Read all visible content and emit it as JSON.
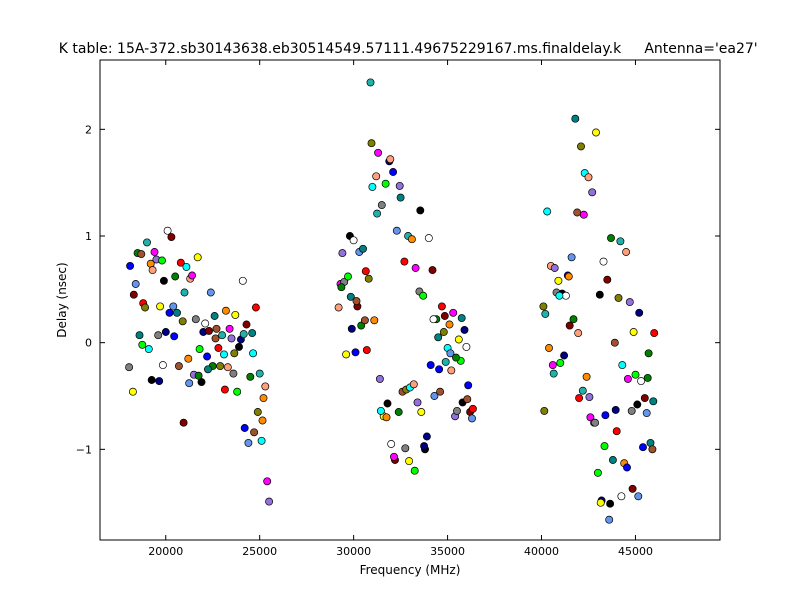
{
  "chart_data": {
    "type": "scatter",
    "title": "K table: 15A-372.sb30143638.eb30514549.57111.49675229167.ms.finaldelay.k",
    "antenna_label": "Antenna='ea27'",
    "xlabel": "Frequency (MHz)",
    "ylabel": "Delay (nsec)",
    "xlim": [
      16500,
      49500
    ],
    "ylim": [
      -1.85,
      2.65
    ],
    "xticks": [
      20000,
      25000,
      30000,
      35000,
      40000,
      45000
    ],
    "yticks": [
      -1,
      0,
      1,
      2
    ],
    "ytick_labels": [
      "−1",
      "0",
      "1",
      "2"
    ],
    "grid": false,
    "marker": "circle",
    "palette": [
      "#0000ff",
      "#008000",
      "#ff0000",
      "#00ffff",
      "#ff00ff",
      "#ffff00",
      "#000080",
      "#800000",
      "#008080",
      "#808000",
      "#ff8c00",
      "#9370db",
      "#00ff00",
      "#ffffff",
      "#6495ed",
      "#a0522d",
      "#20b2aa",
      "#ffa07a",
      "#808080",
      "#000000"
    ],
    "points": [
      [
        18100,
        0.72
      ],
      [
        18300,
        0.45
      ],
      [
        18400,
        0.55
      ],
      [
        18500,
        0.84
      ],
      [
        18600,
        0.07
      ],
      [
        18700,
        0.83
      ],
      [
        18800,
        0.37
      ],
      [
        18900,
        0.33
      ],
      [
        19000,
        0.94
      ],
      [
        19100,
        -0.06
      ],
      [
        19200,
        0.74
      ],
      [
        19300,
        0.68
      ],
      [
        19400,
        0.85
      ],
      [
        19500,
        0.78
      ],
      [
        19600,
        0.07
      ],
      [
        19700,
        0.34
      ],
      [
        19800,
        0.77
      ],
      [
        19900,
        0.58
      ],
      [
        20000,
        0.1
      ],
      [
        20100,
        1.05
      ],
      [
        20200,
        0.28
      ],
      [
        20300,
        0.99
      ],
      [
        20400,
        0.34
      ],
      [
        20500,
        0.62
      ],
      [
        20600,
        0.28
      ],
      [
        20700,
        -0.22
      ],
      [
        20800,
        0.75
      ],
      [
        20900,
        0.2
      ],
      [
        21000,
        0.47
      ],
      [
        21100,
        0.71
      ],
      [
        21200,
        -0.15
      ],
      [
        21300,
        0.6
      ],
      [
        21400,
        0.63
      ],
      [
        21500,
        -0.3
      ],
      [
        21600,
        0.22
      ],
      [
        21700,
        0.8
      ],
      [
        21800,
        -0.06
      ],
      [
        21900,
        -0.37
      ],
      [
        22000,
        0.1
      ],
      [
        22100,
        0.18
      ],
      [
        22200,
        -0.13
      ],
      [
        22300,
        0.11
      ],
      [
        22400,
        0.47
      ],
      [
        22500,
        -0.22
      ],
      [
        22600,
        0.25
      ],
      [
        22700,
        0.13
      ],
      [
        22800,
        -0.05
      ],
      [
        22900,
        -0.22
      ],
      [
        23000,
        0.07
      ],
      [
        23100,
        -0.11
      ],
      [
        23200,
        0.3
      ],
      [
        23300,
        -0.23
      ],
      [
        23400,
        0.13
      ],
      [
        23500,
        0.04
      ],
      [
        23600,
        -0.29
      ],
      [
        23700,
        0.26
      ],
      [
        23800,
        -0.46
      ],
      [
        23900,
        -0.04
      ],
      [
        24000,
        0.03
      ],
      [
        24100,
        0.58
      ],
      [
        24200,
        -0.8
      ],
      [
        24300,
        0.17
      ],
      [
        24400,
        -0.94
      ],
      [
        24500,
        -0.32
      ],
      [
        24600,
        0.09
      ],
      [
        24700,
        -0.84
      ],
      [
        24800,
        0.33
      ],
      [
        24900,
        -0.65
      ],
      [
        25000,
        -0.29
      ],
      [
        25100,
        -0.92
      ],
      [
        25200,
        -0.52
      ],
      [
        25300,
        -0.41
      ],
      [
        25400,
        -1.3
      ],
      [
        25500,
        -1.49
      ],
      [
        18050,
        -0.23
      ],
      [
        18250,
        -0.46
      ],
      [
        18750,
        -0.02
      ],
      [
        19250,
        -0.35
      ],
      [
        19650,
        -0.36
      ],
      [
        19850,
        -0.21
      ],
      [
        20450,
        0.06
      ],
      [
        20950,
        -0.75
      ],
      [
        21250,
        -0.38
      ],
      [
        21750,
        -0.31
      ],
      [
        22250,
        -0.25
      ],
      [
        22650,
        0.04
      ],
      [
        23150,
        -0.44
      ],
      [
        23650,
        -0.1
      ],
      [
        24150,
        0.08
      ],
      [
        24650,
        -0.1
      ],
      [
        25150,
        -0.73
      ],
      [
        29200,
        0.33
      ],
      [
        29300,
        0.55
      ],
      [
        29400,
        0.84
      ],
      [
        29500,
        0.57
      ],
      [
        29600,
        -0.11
      ],
      [
        29700,
        0.62
      ],
      [
        29800,
        1.0
      ],
      [
        29900,
        0.13
      ],
      [
        30000,
        0.96
      ],
      [
        30100,
        -0.09
      ],
      [
        30200,
        0.34
      ],
      [
        30300,
        0.85
      ],
      [
        30400,
        0.16
      ],
      [
        30500,
        0.88
      ],
      [
        30600,
        0.21
      ],
      [
        30700,
        -0.07
      ],
      [
        30800,
        0.6
      ],
      [
        30900,
        2.44
      ],
      [
        31000,
        1.46
      ],
      [
        31100,
        0.21
      ],
      [
        31200,
        1.56
      ],
      [
        31300,
        1.78
      ],
      [
        31400,
        -0.34
      ],
      [
        31500,
        1.29
      ],
      [
        31600,
        -0.69
      ],
      [
        31700,
        1.49
      ],
      [
        31800,
        -0.57
      ],
      [
        31900,
        1.7
      ],
      [
        32000,
        -0.95
      ],
      [
        32100,
        1.6
      ],
      [
        32200,
        -1.1
      ],
      [
        32300,
        1.05
      ],
      [
        32400,
        -0.65
      ],
      [
        32500,
        1.36
      ],
      [
        32600,
        -0.46
      ],
      [
        32700,
        0.76
      ],
      [
        32800,
        -0.44
      ],
      [
        32900,
        1.0
      ],
      [
        33000,
        -0.42
      ],
      [
        33100,
        0.97
      ],
      [
        33200,
        -0.39
      ],
      [
        33300,
        0.7
      ],
      [
        33400,
        -0.56
      ],
      [
        33500,
        0.48
      ],
      [
        33600,
        -0.65
      ],
      [
        33700,
        0.44
      ],
      [
        33800,
        -1.0
      ],
      [
        33900,
        -0.88
      ],
      [
        34000,
        0.98
      ],
      [
        34100,
        -0.21
      ],
      [
        34200,
        0.68
      ],
      [
        34300,
        -0.5
      ],
      [
        34400,
        0.22
      ],
      [
        34500,
        0.05
      ],
      [
        34600,
        -0.46
      ],
      [
        34700,
        0.34
      ],
      [
        34800,
        0.1
      ],
      [
        34900,
        -0.18
      ],
      [
        35000,
        -0.05
      ],
      [
        35100,
        0.17
      ],
      [
        35200,
        -0.26
      ],
      [
        35300,
        0.28
      ],
      [
        35400,
        -0.69
      ],
      [
        35500,
        -0.64
      ],
      [
        35600,
        0.03
      ],
      [
        35700,
        -0.17
      ],
      [
        35800,
        -0.56
      ],
      [
        35900,
        0.12
      ],
      [
        36000,
        -0.04
      ],
      [
        36100,
        -0.4
      ],
      [
        36200,
        -0.65
      ],
      [
        36300,
        -0.71
      ],
      [
        29350,
        0.52
      ],
      [
        29850,
        0.43
      ],
      [
        30150,
        0.39
      ],
      [
        30650,
        0.67
      ],
      [
        30950,
        1.87
      ],
      [
        31250,
        1.21
      ],
      [
        31450,
        -0.64
      ],
      [
        31750,
        -0.7
      ],
      [
        31950,
        1.72
      ],
      [
        32150,
        -1.07
      ],
      [
        32450,
        1.47
      ],
      [
        32750,
        -0.99
      ],
      [
        32950,
        -1.11
      ],
      [
        33250,
        -1.2
      ],
      [
        33550,
        1.24
      ],
      [
        33750,
        -0.97
      ],
      [
        34250,
        0.22
      ],
      [
        34550,
        -0.25
      ],
      [
        34850,
        0.25
      ],
      [
        35150,
        -0.1
      ],
      [
        35450,
        -0.14
      ],
      [
        35750,
        0.23
      ],
      [
        36050,
        -0.53
      ],
      [
        36350,
        -0.62
      ],
      [
        40100,
        0.34
      ],
      [
        40200,
        0.27
      ],
      [
        40300,
        1.23
      ],
      [
        40400,
        -0.05
      ],
      [
        40500,
        0.72
      ],
      [
        40600,
        -0.21
      ],
      [
        40700,
        0.7
      ],
      [
        40800,
        0.47
      ],
      [
        40900,
        0.58
      ],
      [
        41000,
        -0.19
      ],
      [
        41100,
        0.46
      ],
      [
        41200,
        -0.12
      ],
      [
        41300,
        0.44
      ],
      [
        41400,
        0.63
      ],
      [
        41500,
        0.16
      ],
      [
        41600,
        0.8
      ],
      [
        41700,
        0.22
      ],
      [
        41800,
        2.1
      ],
      [
        41900,
        1.22
      ],
      [
        42000,
        -0.52
      ],
      [
        42100,
        1.84
      ],
      [
        42200,
        -0.45
      ],
      [
        42300,
        1.59
      ],
      [
        42400,
        -0.32
      ],
      [
        42500,
        1.55
      ],
      [
        42600,
        -0.7
      ],
      [
        42700,
        1.41
      ],
      [
        42800,
        -0.75
      ],
      [
        42900,
        1.97
      ],
      [
        43000,
        -1.22
      ],
      [
        43100,
        0.45
      ],
      [
        43200,
        -1.48
      ],
      [
        43300,
        0.76
      ],
      [
        43400,
        -0.68
      ],
      [
        43500,
        0.59
      ],
      [
        43600,
        -1.66
      ],
      [
        43700,
        0.98
      ],
      [
        43800,
        -1.1
      ],
      [
        43900,
        0.0
      ],
      [
        44000,
        -0.83
      ],
      [
        44100,
        0.42
      ],
      [
        44200,
        0.95
      ],
      [
        44300,
        -0.21
      ],
      [
        44400,
        -1.13
      ],
      [
        44500,
        0.85
      ],
      [
        44600,
        -0.34
      ],
      [
        44700,
        0.38
      ],
      [
        44800,
        -0.64
      ],
      [
        44900,
        0.1
      ],
      [
        45000,
        -0.3
      ],
      [
        45100,
        -0.58
      ],
      [
        45200,
        0.28
      ],
      [
        45300,
        -0.36
      ],
      [
        45400,
        -0.98
      ],
      [
        45500,
        -0.52
      ],
      [
        45600,
        -0.66
      ],
      [
        45700,
        -0.1
      ],
      [
        45800,
        -0.94
      ],
      [
        45900,
        -1.0
      ],
      [
        46000,
        0.09
      ],
      [
        40150,
        -0.64
      ],
      [
        40650,
        -0.29
      ],
      [
        40950,
        0.44
      ],
      [
        41450,
        0.62
      ],
      [
        41950,
        0.09
      ],
      [
        42250,
        1.2
      ],
      [
        42550,
        -0.51
      ],
      [
        42850,
        -0.75
      ],
      [
        43150,
        -1.5
      ],
      [
        43350,
        -0.97
      ],
      [
        43650,
        -1.51
      ],
      [
        43950,
        -0.63
      ],
      [
        44250,
        -1.44
      ],
      [
        44550,
        -1.17
      ],
      [
        44850,
        -1.37
      ],
      [
        45150,
        -1.44
      ],
      [
        45650,
        -0.33
      ],
      [
        45950,
        -0.55
      ]
    ]
  }
}
